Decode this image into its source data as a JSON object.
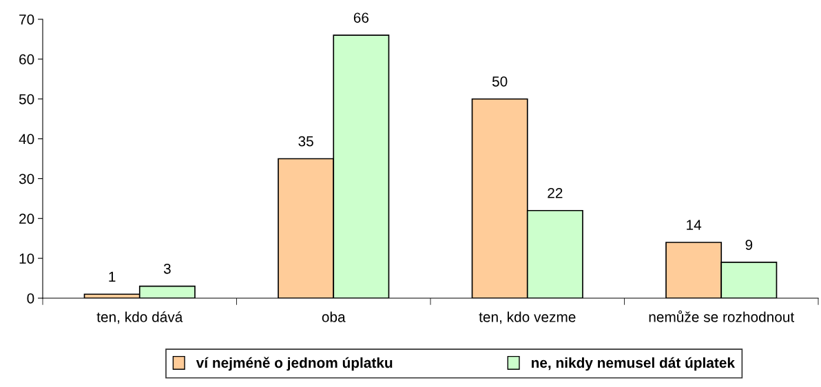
{
  "chart_data": {
    "type": "bar",
    "categories": [
      "ten, kdo dává",
      "oba",
      "ten, kdo vezme",
      "nemůže se rozhodnout"
    ],
    "series": [
      {
        "name": "ví nejméně o jednom úplatku",
        "color": "#ffcc99",
        "values": [
          1,
          35,
          50,
          14
        ]
      },
      {
        "name": "ne, nikdy nemusel dát úplatek",
        "color": "#ccffcc",
        "values": [
          3,
          66,
          22,
          9
        ]
      }
    ],
    "ylim": [
      0,
      70
    ],
    "yticks": [
      0,
      10,
      20,
      30,
      40,
      50,
      60,
      70
    ],
    "data_labels": true,
    "grid": false,
    "legend": "bottom"
  }
}
